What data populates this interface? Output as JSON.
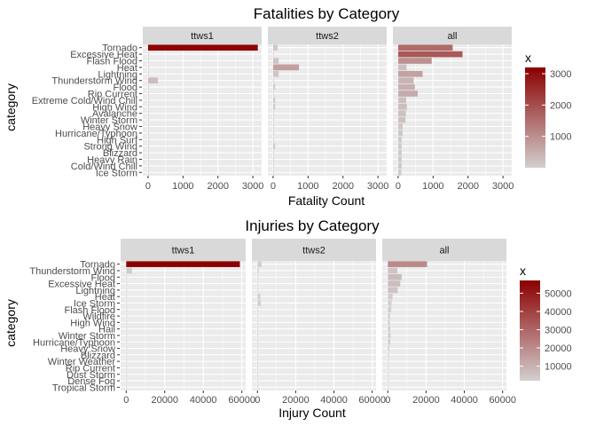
{
  "chart_data": [
    {
      "type": "bar",
      "title": "Fatalities by Category",
      "xlabel": "Fatality Count",
      "ylabel": "category",
      "facets": [
        "ttws1",
        "ttws2",
        "all"
      ],
      "xlim": [
        -150,
        3250
      ],
      "xticks": [
        0,
        1000,
        2000,
        3000
      ],
      "categories": [
        "Ice Storm",
        "Cold/Wind Chill",
        "Heavy Rain",
        "Blizzard",
        "Strong Wind",
        "High Surf",
        "Hurricane/Typhoon",
        "Heavy Snow",
        "Winter Storm",
        "Avalanche",
        "High Wind",
        "Extreme Cold/Wind Chill",
        "Rip Current",
        "Flood",
        "Thunderstorm Wind",
        "Lightning",
        "Heat",
        "Flash Flood",
        "Excessive Heat",
        "Tornado"
      ],
      "series": [
        {
          "name": "ttws1",
          "values": [
            5,
            5,
            5,
            5,
            5,
            5,
            5,
            5,
            5,
            5,
            5,
            5,
            5,
            5,
            280,
            5,
            5,
            5,
            5,
            3140
          ]
        },
        {
          "name": "ttws2",
          "values": [
            10,
            10,
            10,
            10,
            60,
            10,
            10,
            10,
            10,
            10,
            60,
            60,
            10,
            60,
            10,
            160,
            740,
            160,
            10,
            130
          ]
        },
        {
          "name": "all",
          "values": [
            90,
            100,
            100,
            100,
            100,
            100,
            130,
            130,
            210,
            220,
            250,
            230,
            560,
            480,
            440,
            700,
            240,
            960,
            1840,
            1560
          ]
        }
      ],
      "legend": {
        "title": "x",
        "ticks": [
          1000,
          2000,
          3000
        ],
        "range": [
          0,
          3200
        ],
        "low_color": "#d3cfcf",
        "high_color": "#8b0000",
        "position": "right"
      }
    },
    {
      "type": "bar",
      "title": "Injuries by Category",
      "xlabel": "Injury Count",
      "ylabel": "category",
      "facets": [
        "ttws1",
        "ttws2",
        "all"
      ],
      "xlim": [
        -2900,
        62000
      ],
      "xticks": [
        0,
        20000,
        40000,
        60000
      ],
      "categories": [
        "Tropical Storm",
        "Dense Fog",
        "Dust Storm",
        "Rip Current",
        "Winter Weather",
        "Blizzard",
        "Heavy Snow",
        "Hurricane/Typhoon",
        "Winter Storm",
        "Hail",
        "High Wind",
        "Wildfire",
        "Flash Flood",
        "Ice Storm",
        "Heat",
        "Lightning",
        "Excessive Heat",
        "Flood",
        "Thunderstorm Wind",
        "Tornado"
      ],
      "series": [
        {
          "name": "ttws1",
          "values": [
            100,
            100,
            100,
            100,
            100,
            100,
            100,
            100,
            100,
            400,
            100,
            100,
            100,
            100,
            100,
            100,
            100,
            100,
            3000,
            59000
          ]
        },
        {
          "name": "ttws2",
          "values": [
            100,
            100,
            100,
            100,
            100,
            100,
            100,
            300,
            100,
            100,
            100,
            100,
            100,
            1800,
            1500,
            100,
            100,
            400,
            700,
            2200
          ]
        },
        {
          "name": "all",
          "values": [
            300,
            400,
            400,
            400,
            400,
            600,
            800,
            1300,
            1500,
            1300,
            1100,
            1200,
            1800,
            2000,
            2500,
            5200,
            6500,
            7200,
            5000,
            20500
          ]
        }
      ],
      "legend": {
        "title": "x",
        "ticks": [
          10000,
          20000,
          30000,
          40000,
          50000
        ],
        "range": [
          2000,
          57000
        ],
        "low_color": "#d3cfcf",
        "high_color": "#8b0000",
        "position": "right"
      }
    }
  ],
  "colors": {
    "panel_bg": "#ebebeb",
    "strip_bg": "#d9d9d9",
    "grid": "#ffffff",
    "text": "#1a1a1a",
    "tick_text": "#4d4d4d"
  }
}
